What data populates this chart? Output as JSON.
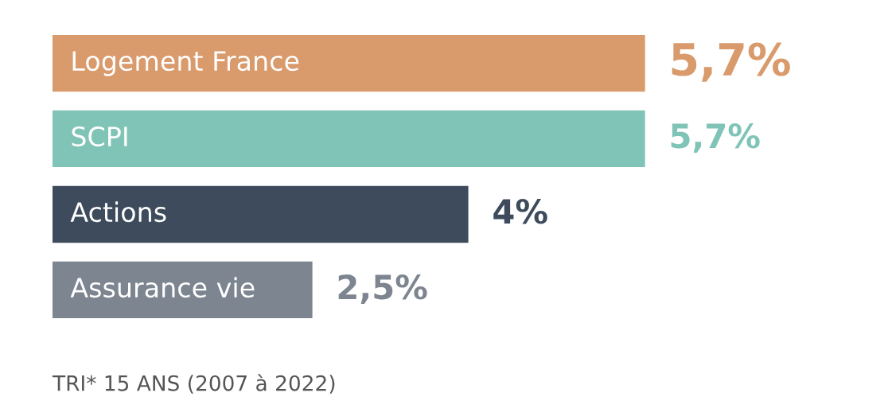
{
  "chart_data": {
    "type": "bar",
    "orientation": "horizontal",
    "categories": [
      "Logement France",
      "SCPI",
      "Actions",
      "Assurance vie"
    ],
    "values": [
      5.7,
      5.7,
      4,
      2.5
    ],
    "colors": [
      "#d99a6c",
      "#80c4b7",
      "#3d4b5c",
      "#7d8590"
    ],
    "value_labels": [
      "5,7%",
      "5,7%",
      "4%",
      "2,5%"
    ],
    "annotations": [
      "TRI* 15 ANS (2007 à 2022)"
    ]
  }
}
